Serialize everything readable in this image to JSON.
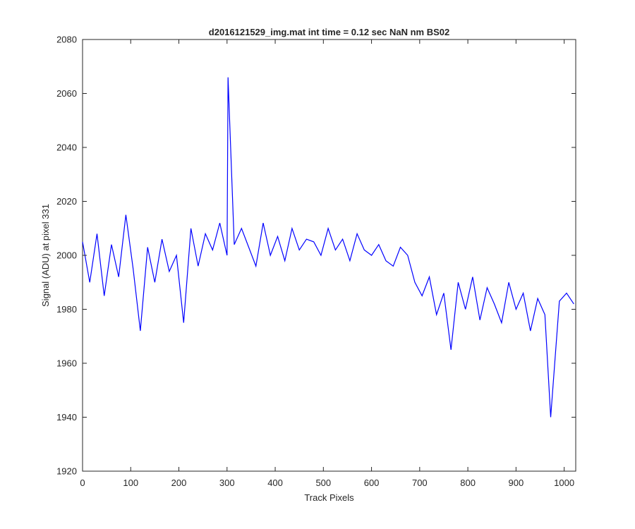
{
  "chart_data": {
    "type": "line",
    "title": "d2016121529_img.mat int time = 0.12 sec  NaN nm BS02",
    "xlabel": "Track Pixels",
    "ylabel": "Signal (ADU) at pixel 331",
    "xlim": [
      0,
      1024
    ],
    "ylim": [
      1920,
      2080
    ],
    "xticks": [
      0,
      100,
      200,
      300,
      400,
      500,
      600,
      700,
      800,
      900,
      1000
    ],
    "yticks": [
      1920,
      1940,
      1960,
      1980,
      2000,
      2020,
      2040,
      2060,
      2080
    ],
    "grid": false,
    "line_color": "#0000ff",
    "series": [
      {
        "x": [
          0,
          15,
          30,
          45,
          60,
          75,
          90,
          105,
          120,
          135,
          150,
          165,
          180,
          195,
          210,
          225,
          240,
          255,
          270,
          285,
          300,
          302,
          315,
          330,
          345,
          360,
          375,
          390,
          405,
          420,
          435,
          450,
          465,
          480,
          495,
          510,
          525,
          540,
          555,
          570,
          585,
          600,
          615,
          630,
          645,
          660,
          675,
          690,
          705,
          720,
          735,
          750,
          765,
          780,
          795,
          810,
          825,
          840,
          855,
          870,
          885,
          900,
          915,
          930,
          945,
          960,
          972,
          990,
          1005,
          1020
        ],
        "y": [
          2005,
          1990,
          2008,
          1985,
          2004,
          1992,
          2015,
          1995,
          1972,
          2003,
          1990,
          2006,
          1994,
          2000,
          1975,
          2010,
          1996,
          2008,
          2002,
          2012,
          2000,
          2066,
          2004,
          2010,
          2003,
          1996,
          2012,
          2000,
          2007,
          1998,
          2010,
          2002,
          2006,
          2005,
          2000,
          2010,
          2002,
          2006,
          1998,
          2008,
          2002,
          2000,
          2004,
          1998,
          1996,
          2003,
          2000,
          1990,
          1985,
          1992,
          1978,
          1986,
          1965,
          1990,
          1980,
          1992,
          1976,
          1988,
          1982,
          1975,
          1990,
          1980,
          1986,
          1972,
          1984,
          1978,
          1940,
          1983,
          1986,
          1982
        ]
      }
    ]
  }
}
